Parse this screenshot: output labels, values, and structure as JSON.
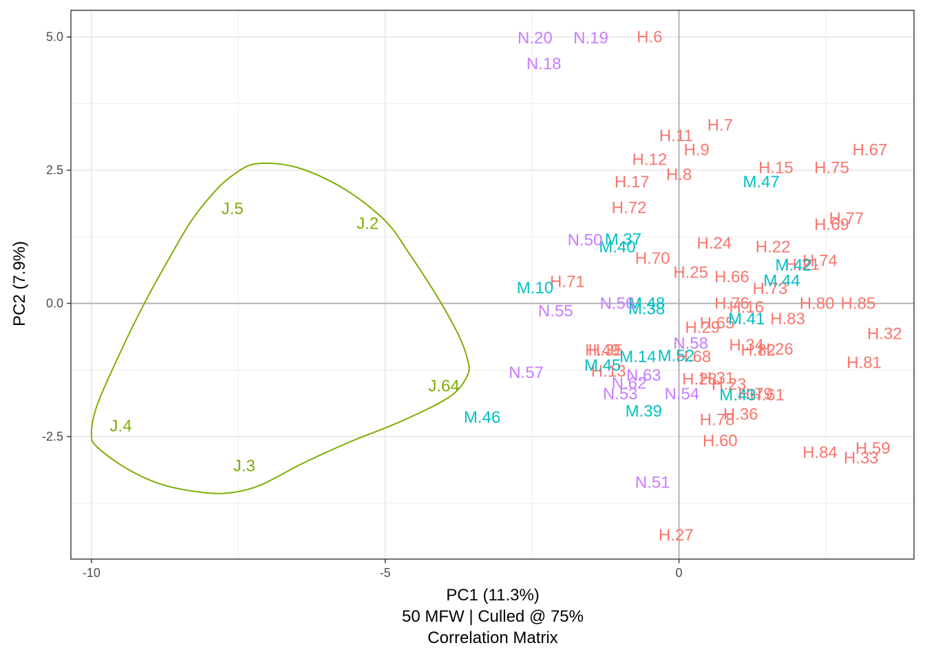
{
  "chart_data": {
    "type": "scatter",
    "title": "",
    "xlabel": "PC1 (11.3%)",
    "xlabel_lines": [
      "PC1 (11.3%)",
      "50 MFW | Culled @ 75%",
      "Correlation Matrix"
    ],
    "ylabel": "PC2 (7.9%)",
    "xlim": [
      -10.35,
      4.0
    ],
    "ylim": [
      -4.8,
      5.5
    ],
    "x_ticks": [
      -10,
      -5,
      0
    ],
    "x_tick_labels": [
      "-10",
      "-5",
      "0"
    ],
    "y_ticks": [
      5.0,
      2.5,
      0.0,
      -2.5
    ],
    "y_tick_labels": [
      "5.0",
      "2.5",
      "0.0",
      "-2.5"
    ],
    "x_minor_grid": [
      -7.5,
      -2.5,
      2.5
    ],
    "y_minor_grid": [
      3.75,
      1.25,
      -1.25,
      -3.75
    ],
    "grid": true,
    "legend": "none",
    "reference_lines": {
      "x": 0,
      "y": 0
    },
    "colors": {
      "H": "#F8766D",
      "M": "#00BFC4",
      "N": "#C77CFF",
      "J": "#7CAE00",
      "axis_line": "#b3b3b3",
      "grid": "#ebebeb",
      "frame": "#333333"
    },
    "series": [
      {
        "group": "H",
        "points": [
          {
            "label": "H.6",
            "x": -0.5,
            "y": 5.0
          },
          {
            "label": "H.7",
            "x": 0.7,
            "y": 3.35
          },
          {
            "label": "H.11",
            "x": -0.05,
            "y": 3.15
          },
          {
            "label": "H.9",
            "x": 0.3,
            "y": 2.88
          },
          {
            "label": "H.12",
            "x": -0.5,
            "y": 2.7
          },
          {
            "label": "H.8",
            "x": 0.0,
            "y": 2.42
          },
          {
            "label": "H.17",
            "x": -0.8,
            "y": 2.28
          },
          {
            "label": "H.67",
            "x": 3.25,
            "y": 2.88
          },
          {
            "label": "H.15",
            "x": 1.65,
            "y": 2.55
          },
          {
            "label": "H.75",
            "x": 2.6,
            "y": 2.55
          },
          {
            "label": "H.72",
            "x": -0.85,
            "y": 1.8
          },
          {
            "label": "H.77",
            "x": 2.85,
            "y": 1.6
          },
          {
            "label": "H.69",
            "x": 2.6,
            "y": 1.48
          },
          {
            "label": "H.24",
            "x": 0.6,
            "y": 1.13
          },
          {
            "label": "H.22",
            "x": 1.6,
            "y": 1.06
          },
          {
            "label": "H.70",
            "x": -0.45,
            "y": 0.85
          },
          {
            "label": "H.74",
            "x": 2.4,
            "y": 0.8
          },
          {
            "label": "H.21",
            "x": 2.1,
            "y": 0.73
          },
          {
            "label": "H.25",
            "x": 0.2,
            "y": 0.58
          },
          {
            "label": "H.66",
            "x": 0.9,
            "y": 0.5
          },
          {
            "label": "H.71",
            "x": -1.9,
            "y": 0.41
          },
          {
            "label": "H.73",
            "x": 1.55,
            "y": 0.28
          },
          {
            "label": "H.76",
            "x": 0.9,
            "y": 0.0
          },
          {
            "label": "H.16",
            "x": 1.15,
            "y": -0.07
          },
          {
            "label": "H.80",
            "x": 2.35,
            "y": 0.0
          },
          {
            "label": "H.85",
            "x": 3.05,
            "y": 0.0
          },
          {
            "label": "H.65",
            "x": 0.65,
            "y": -0.37
          },
          {
            "label": "H.83",
            "x": 1.85,
            "y": -0.29
          },
          {
            "label": "H.29",
            "x": 0.4,
            "y": -0.45
          },
          {
            "label": "H.32",
            "x": 3.5,
            "y": -0.57
          },
          {
            "label": "H.34",
            "x": 1.15,
            "y": -0.78
          },
          {
            "label": "H.26",
            "x": 1.65,
            "y": -0.86
          },
          {
            "label": "H.82",
            "x": 1.35,
            "y": -0.88
          },
          {
            "label": "H.49",
            "x": -1.3,
            "y": -0.88
          },
          {
            "label": "H.35",
            "x": -1.25,
            "y": -0.88
          },
          {
            "label": "H.68",
            "x": 0.25,
            "y": -1.0
          },
          {
            "label": "H.81",
            "x": 3.15,
            "y": -1.11
          },
          {
            "label": "H.13",
            "x": -1.2,
            "y": -1.27
          },
          {
            "label": "H.31",
            "x": 0.65,
            "y": -1.4
          },
          {
            "label": "H.28",
            "x": 0.35,
            "y": -1.42
          },
          {
            "label": "H.23",
            "x": 0.85,
            "y": -1.52
          },
          {
            "label": "H.61",
            "x": 1.5,
            "y": -1.72
          },
          {
            "label": "H.79",
            "x": 1.3,
            "y": -1.7
          },
          {
            "label": "H.36",
            "x": 1.05,
            "y": -2.08
          },
          {
            "label": "H.78",
            "x": 0.65,
            "y": -2.18
          },
          {
            "label": "H.60",
            "x": 0.7,
            "y": -2.58
          },
          {
            "label": "H.84",
            "x": 2.4,
            "y": -2.8
          },
          {
            "label": "H.59",
            "x": 3.3,
            "y": -2.72
          },
          {
            "label": "H.33",
            "x": 3.1,
            "y": -2.9
          },
          {
            "label": "H.27",
            "x": -0.05,
            "y": -4.35
          }
        ]
      },
      {
        "group": "M",
        "points": [
          {
            "label": "M.47",
            "x": 1.4,
            "y": 2.28
          },
          {
            "label": "M.37",
            "x": -0.95,
            "y": 1.2
          },
          {
            "label": "M.40",
            "x": -1.05,
            "y": 1.06
          },
          {
            "label": "M.42",
            "x": 1.95,
            "y": 0.72
          },
          {
            "label": "M.44",
            "x": 1.75,
            "y": 0.43
          },
          {
            "label": "M.10",
            "x": -2.45,
            "y": 0.29
          },
          {
            "label": "M.48",
            "x": -0.55,
            "y": 0.0
          },
          {
            "label": "M.38",
            "x": -0.55,
            "y": -0.1
          },
          {
            "label": "M.41",
            "x": 1.15,
            "y": -0.29
          },
          {
            "label": "M.14",
            "x": -0.7,
            "y": -1.0
          },
          {
            "label": "M.52",
            "x": -0.05,
            "y": -0.98
          },
          {
            "label": "M.45",
            "x": -1.3,
            "y": -1.16
          },
          {
            "label": "M.43",
            "x": 1.0,
            "y": -1.72
          },
          {
            "label": "M.39",
            "x": -0.6,
            "y": -2.02
          },
          {
            "label": "M.46",
            "x": -3.35,
            "y": -2.14
          }
        ]
      },
      {
        "group": "N",
        "points": [
          {
            "label": "N.20",
            "x": -2.45,
            "y": 4.98
          },
          {
            "label": "N.19",
            "x": -1.5,
            "y": 4.98
          },
          {
            "label": "N.18",
            "x": -2.3,
            "y": 4.5
          },
          {
            "label": "N.50",
            "x": -1.6,
            "y": 1.19
          },
          {
            "label": "N.55",
            "x": -2.1,
            "y": -0.14
          },
          {
            "label": "N.56",
            "x": -1.05,
            "y": 0.0
          },
          {
            "label": "N.58",
            "x": 0.2,
            "y": -0.75
          },
          {
            "label": "N.57",
            "x": -2.6,
            "y": -1.3
          },
          {
            "label": "N.63",
            "x": -0.6,
            "y": -1.35
          },
          {
            "label": "N.62",
            "x": -0.85,
            "y": -1.5
          },
          {
            "label": "N.53",
            "x": -1.0,
            "y": -1.7
          },
          {
            "label": "N.54",
            "x": 0.05,
            "y": -1.7
          },
          {
            "label": "N.51",
            "x": -0.45,
            "y": -3.36
          }
        ]
      },
      {
        "group": "J",
        "points": [
          {
            "label": "J.5",
            "x": -7.6,
            "y": 1.78
          },
          {
            "label": "J.2",
            "x": -5.3,
            "y": 1.5
          },
          {
            "label": "J.64",
            "x": -4.0,
            "y": -1.55
          },
          {
            "label": "J.4",
            "x": -9.5,
            "y": -2.3
          },
          {
            "label": "J.3",
            "x": -7.4,
            "y": -3.05
          }
        ]
      }
    ],
    "ellipse": {
      "group": "J",
      "path": [
        [
          -7.2,
          2.62
        ],
        [
          -6.5,
          2.55
        ],
        [
          -5.7,
          2.15
        ],
        [
          -5.0,
          1.55
        ],
        [
          -4.6,
          0.95
        ],
        [
          -4.1,
          0.1
        ],
        [
          -3.75,
          -0.6
        ],
        [
          -3.6,
          -1.05
        ],
        [
          -3.6,
          -1.35
        ],
        [
          -3.9,
          -1.75
        ],
        [
          -4.7,
          -2.2
        ],
        [
          -5.6,
          -2.6
        ],
        [
          -6.4,
          -3.0
        ],
        [
          -7.1,
          -3.4
        ],
        [
          -7.6,
          -3.55
        ],
        [
          -8.1,
          -3.55
        ],
        [
          -8.8,
          -3.4
        ],
        [
          -9.4,
          -3.1
        ],
        [
          -9.9,
          -2.7
        ],
        [
          -10.0,
          -2.45
        ],
        [
          -9.9,
          -1.9
        ],
        [
          -9.5,
          -0.9
        ],
        [
          -9.1,
          0.0
        ],
        [
          -8.7,
          0.8
        ],
        [
          -8.3,
          1.55
        ],
        [
          -7.9,
          2.1
        ],
        [
          -7.6,
          2.4
        ],
        [
          -7.2,
          2.62
        ]
      ]
    }
  }
}
